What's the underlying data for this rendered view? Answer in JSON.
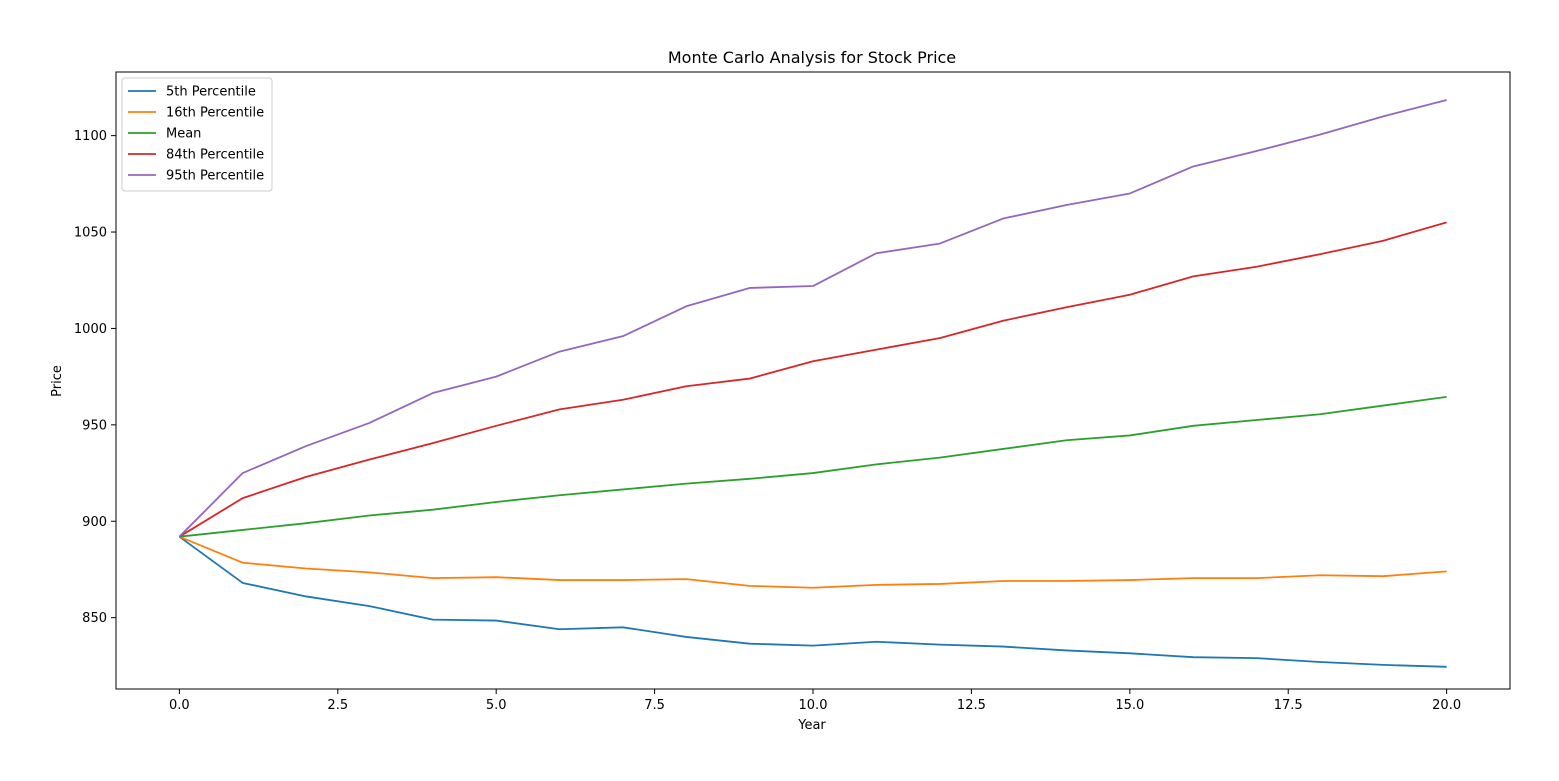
{
  "chart_data": {
    "type": "line",
    "title": "Monte Carlo Analysis for Stock Price",
    "xlabel": "Year",
    "ylabel": "Price",
    "xlim": [
      -1,
      21
    ],
    "ylim": [
      813,
      1133
    ],
    "x_ticks": [
      0,
      2.5,
      5,
      7.5,
      10,
      12.5,
      15,
      17.5,
      20
    ],
    "x_tick_labels": [
      "0.0",
      "2.5",
      "5.0",
      "7.5",
      "10.0",
      "12.5",
      "15.0",
      "17.5",
      "20.0"
    ],
    "y_ticks": [
      850,
      900,
      950,
      1000,
      1050,
      1100
    ],
    "y_tick_labels": [
      "850",
      "900",
      "950",
      "1000",
      "1050",
      "1100"
    ],
    "grid": false,
    "legend_position": "top-left",
    "x": [
      0,
      1,
      2,
      3,
      4,
      5,
      6,
      7,
      8,
      9,
      10,
      11,
      12,
      13,
      14,
      15,
      16,
      17,
      18,
      19,
      20
    ],
    "series": [
      {
        "name": "5th Percentile",
        "color": "#1f77b4",
        "values": [
          892,
          868,
          861,
          856,
          849,
          848.5,
          844,
          845,
          840,
          836.5,
          835.5,
          837.5,
          836,
          835,
          833,
          831.5,
          829.5,
          829,
          827,
          825.5,
          824.5
        ]
      },
      {
        "name": "16th Percentile",
        "color": "#ff7f0e",
        "values": [
          892,
          878.5,
          875.5,
          873.5,
          870.5,
          871,
          869.5,
          869.5,
          870,
          866.5,
          865.5,
          867,
          867.5,
          869,
          869,
          869.5,
          870.5,
          870.5,
          872,
          871.5,
          874
        ]
      },
      {
        "name": "Mean",
        "color": "#2ca02c",
        "values": [
          892,
          895.5,
          899,
          903,
          906,
          910,
          913.5,
          916.5,
          919.5,
          922,
          925,
          929.5,
          933,
          937.5,
          942,
          944.5,
          949.5,
          952.5,
          955.5,
          960,
          964.5
        ]
      },
      {
        "name": "84th Percentile",
        "color": "#d62728",
        "values": [
          892,
          912,
          923,
          932,
          940.5,
          949.5,
          958,
          963,
          970,
          974,
          983,
          989,
          995,
          1004,
          1011,
          1017.5,
          1027,
          1032,
          1038.5,
          1045.5,
          1055
        ]
      },
      {
        "name": "95th Percentile",
        "color": "#9467bd",
        "values": [
          892,
          925,
          939,
          951,
          966.5,
          975,
          988,
          996,
          1011.5,
          1021,
          1022,
          1039,
          1044,
          1057,
          1064,
          1070,
          1084,
          1092,
          1100.5,
          1110,
          1118.5
        ]
      }
    ]
  }
}
